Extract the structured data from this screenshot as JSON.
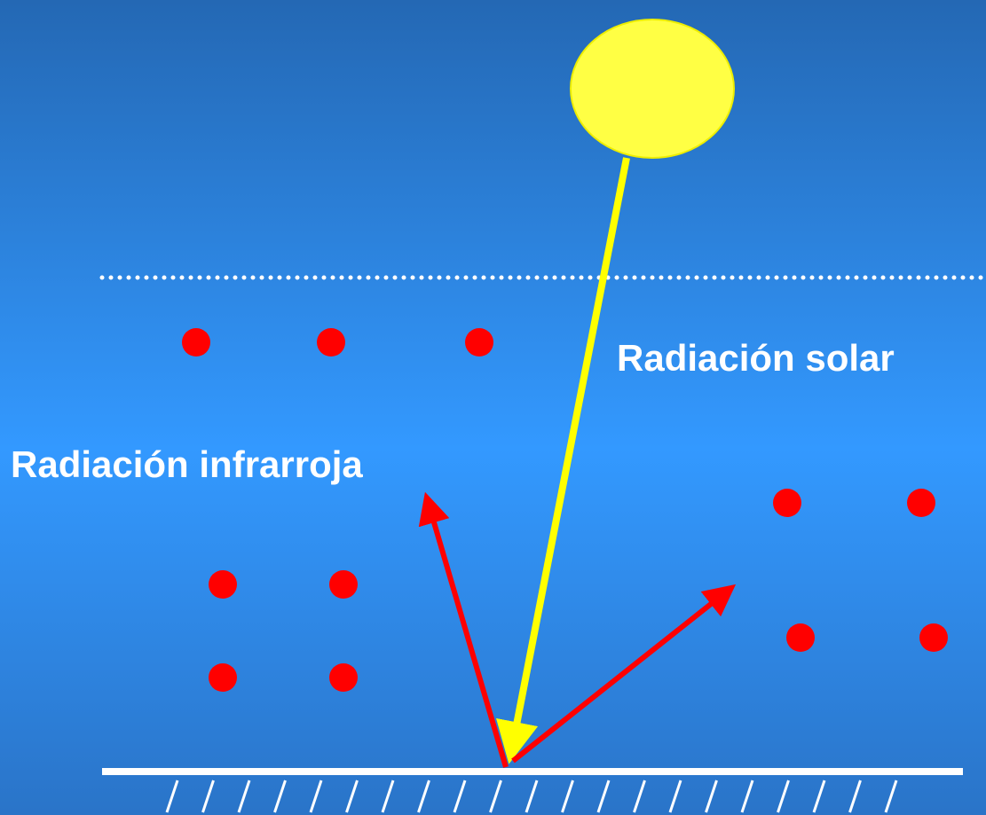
{
  "labels": {
    "solar": "Radiación solar",
    "infrared": "Radiación infrarroja"
  }
}
